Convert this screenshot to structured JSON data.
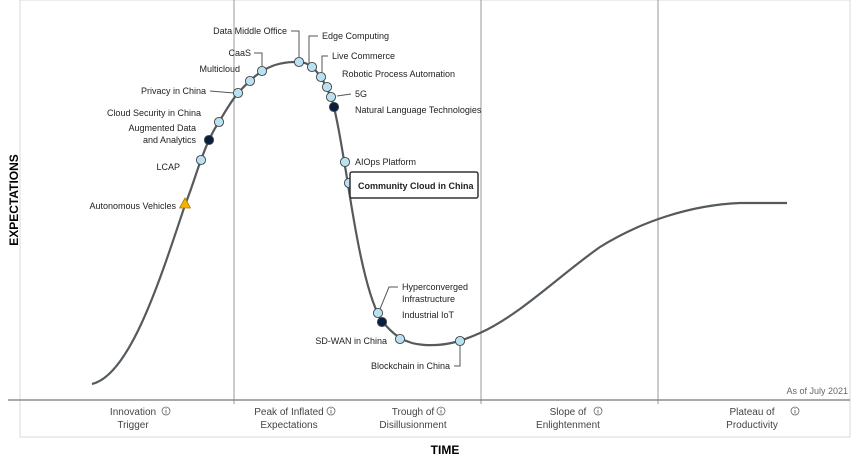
{
  "axes": {
    "y_label": "EXPECTATIONS",
    "x_label": "TIME"
  },
  "as_of": "As of July 2021",
  "phases": [
    {
      "line1": "Innovation",
      "line2": "Trigger"
    },
    {
      "line1": "Peak of Inflated",
      "line2": "Expectations"
    },
    {
      "line1": "Trough of",
      "line2": "Disillusionment"
    },
    {
      "line1": "Slope of",
      "line2": "Enlightenment"
    },
    {
      "line1": "Plateau of",
      "line2": "Productivity"
    }
  ],
  "info_icon": "info-icon",
  "colors": {
    "light_marker": "#b9e1f2",
    "dark_marker": "#0b1e3f",
    "triangle_marker": "#f5b400",
    "curve": "#555a5e"
  },
  "technologies": [
    {
      "name": "Autonomous Vehicles",
      "marker": "triangle"
    },
    {
      "name": "LCAP",
      "marker": "light"
    },
    {
      "name": "Augmented Data",
      "name2": "and Analytics",
      "marker": "dark"
    },
    {
      "name": "Cloud Security in China",
      "marker": "light"
    },
    {
      "name": "Privacy in China",
      "marker": "light"
    },
    {
      "name": "Multicloud",
      "marker": "light"
    },
    {
      "name": "CaaS",
      "marker": "light"
    },
    {
      "name": "Data Middle Office",
      "marker": "light"
    },
    {
      "name": "Edge Computing",
      "marker": "light"
    },
    {
      "name": "Live Commerce",
      "marker": "light"
    },
    {
      "name": "Robotic Process Automation",
      "marker": "light"
    },
    {
      "name": "5G",
      "marker": "light"
    },
    {
      "name": "Natural Language Technologies",
      "marker": "dark"
    },
    {
      "name": "AIOps Platform",
      "marker": "light"
    },
    {
      "name": "Community Cloud in China",
      "marker": "light",
      "highlighted": true
    },
    {
      "name": "Hyperconverged",
      "name2": "Infrastructure",
      "marker": "light"
    },
    {
      "name": "Industrial IoT",
      "marker": "dark"
    },
    {
      "name": "SD-WAN in China",
      "marker": "light"
    },
    {
      "name": "Blockchain in China",
      "marker": "light"
    }
  ]
}
